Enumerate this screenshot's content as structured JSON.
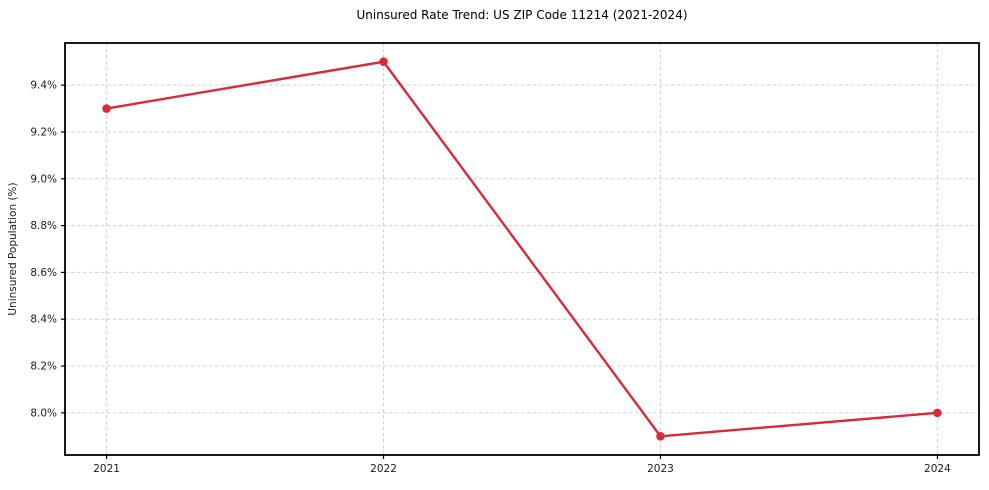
{
  "window": {
    "background": "#ffffff"
  },
  "chart_data": {
    "type": "line",
    "title": "Uninsured Rate Trend: US ZIP Code 11214 (2021-2024)",
    "xlabel": "",
    "ylabel": "Uninsured Population (%)",
    "categories": [
      "2021",
      "2022",
      "2023",
      "2024"
    ],
    "series": [
      {
        "values": [
          9.3,
          9.5,
          7.9,
          8.0
        ],
        "color": "#d62b3a",
        "marker": "circle"
      }
    ],
    "ylim": [
      7.82,
      9.58
    ],
    "yticks": {
      "values": [
        8.0,
        8.2,
        8.4,
        8.6,
        8.8,
        9.0,
        9.2,
        9.4
      ],
      "labels": [
        "8.0%",
        "8.2%",
        "8.4%",
        "8.6%",
        "8.8%",
        "9.0%",
        "9.2%",
        "9.4%"
      ]
    },
    "grid": {
      "show": true,
      "line_style": "dashed",
      "color": "#d0d0d0"
    },
    "axes": {
      "spine_color": "#000000",
      "tick_color": "#000000",
      "tick_label_color": "#1a1a1a"
    },
    "legend": {
      "show": false
    }
  }
}
